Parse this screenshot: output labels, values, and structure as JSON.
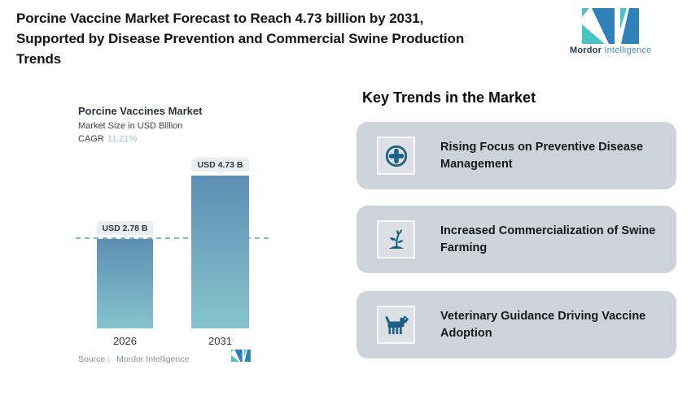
{
  "header": {
    "title": "Porcine Vaccine Market Forecast to Reach 4.73 billion by 2031, Supported by Disease Prevention and Commercial Swine Production Trends"
  },
  "brand": {
    "wordmark_bold": "Mordor",
    "wordmark_light": "Intelligence",
    "colors": {
      "teal": "#4BC2C6",
      "blue": "#2E81B8",
      "navy_text": "#223F5A",
      "light_text": "#4E90C1"
    }
  },
  "chart": {
    "title": "Porcine Vaccines Market",
    "subtitle": "Market Size in USD Billion",
    "cagr_label": "CAGR",
    "cagr_value": "11.21%",
    "cagr_value_color": "#9CC6DA",
    "source_label": "Source :",
    "source_value": "Mordor Intelligence"
  },
  "chart_data": {
    "type": "bar",
    "categories": [
      "2026",
      "2031"
    ],
    "values": [
      2.78,
      4.73
    ],
    "value_labels": [
      "USD 2.78 B",
      "USD 4.73 B"
    ],
    "title": "Porcine Vaccines Market",
    "xlabel": "",
    "ylabel": "Market Size in USD Billion",
    "ylim": [
      0,
      5.35
    ],
    "grid": false,
    "reference_line": 2.78,
    "reference_line_style": "dashed",
    "bar_gradient_top": "#5E8EB3",
    "bar_gradient_bottom": "#85C4CC",
    "dash_color": "#7FB9CB",
    "label_pill_bg": "#E9EEF1"
  },
  "trends": {
    "heading": "Key Trends in the Market",
    "card_bg": "#CDD3DA",
    "icon_color": "#1B6186",
    "items": [
      {
        "icon": "medical-plus-icon",
        "label": "Rising Focus on Preventive Disease Management"
      },
      {
        "icon": "plant-sprout-icon",
        "label": "Increased Commercialization of Swine Farming"
      },
      {
        "icon": "dog-icon",
        "label": "Veterinary Guidance Driving Vaccine Adoption"
      }
    ]
  }
}
